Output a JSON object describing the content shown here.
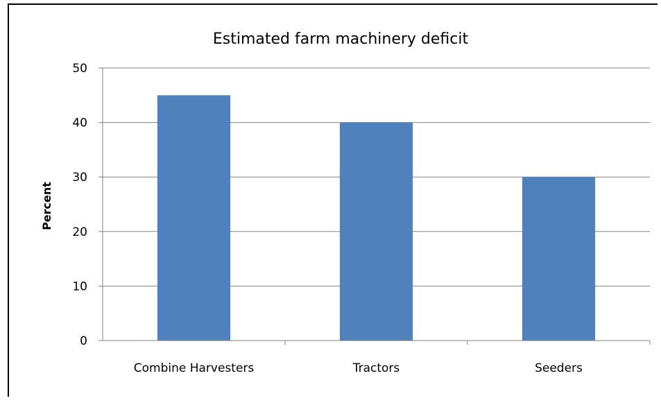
{
  "chart_data": {
    "type": "bar",
    "title": "Estimated farm machinery deficit",
    "xlabel": "",
    "ylabel": "Percent",
    "categories": [
      "Combine Harvesters",
      "Tractors",
      "Seeders"
    ],
    "values": [
      45,
      40,
      30
    ],
    "ylim": [
      0,
      50
    ],
    "yticks": [
      0,
      10,
      20,
      30,
      40,
      50
    ],
    "grid": true,
    "legend": "none",
    "bar_color": "#4F81BD",
    "grid_color": "#808080"
  }
}
